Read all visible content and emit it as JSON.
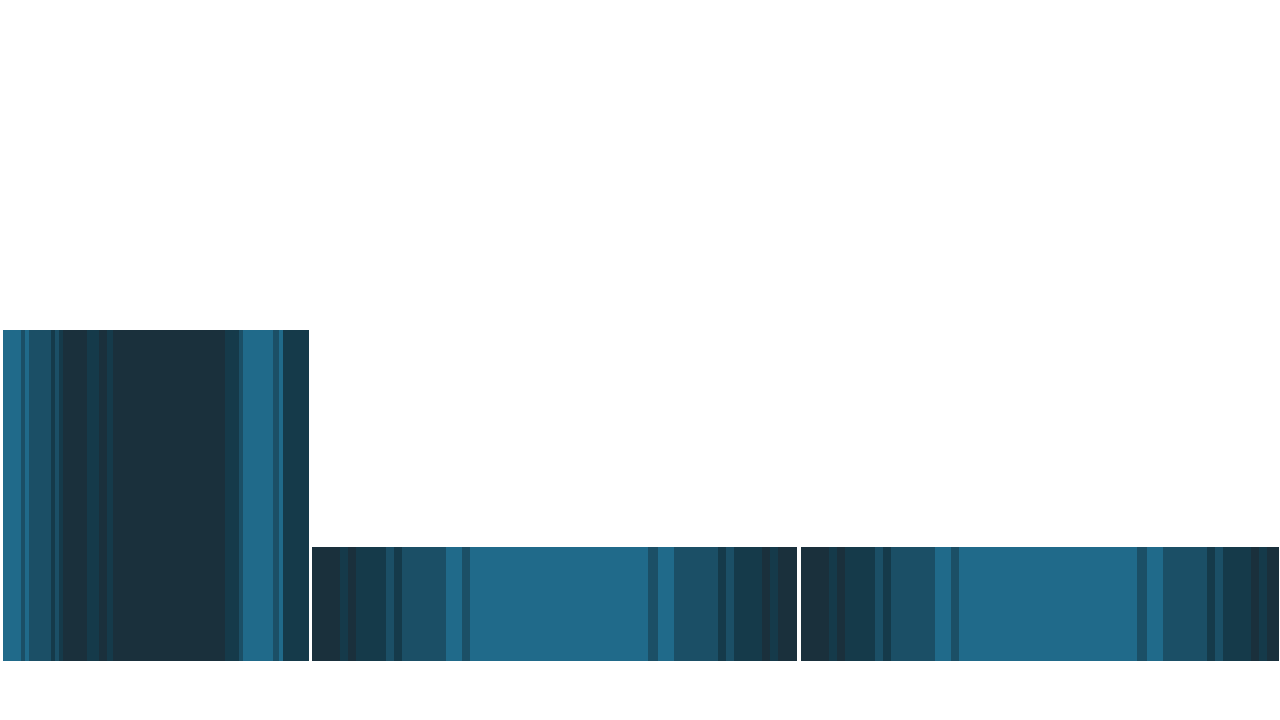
{
  "palette": {
    "darkest": "#1a303c",
    "dark": "#153a4a",
    "mid": "#1b4f66",
    "bright": "#206a8a",
    "background": "#ffffff"
  },
  "panels": [
    {
      "id": "panel-left",
      "name": "stripe-panel-left",
      "stripes": [
        "bright",
        "mid",
        "bright",
        "mid",
        "dark",
        "mid",
        "dark",
        "darkest",
        "dark",
        "darkest",
        "dark",
        "darkest",
        "dark",
        "mid",
        "bright",
        "mid",
        "bright",
        "dark"
      ]
    },
    {
      "id": "panel-middle",
      "name": "stripe-panel-middle",
      "stripes": [
        "darkest",
        "dark",
        "darkest",
        "dark",
        "mid",
        "dark",
        "mid",
        "bright",
        "mid",
        "bright",
        "mid",
        "bright",
        "mid",
        "dark",
        "mid",
        "dark",
        "darkest",
        "dark",
        "darkest"
      ]
    },
    {
      "id": "panel-right",
      "name": "stripe-panel-right",
      "stripes": [
        "darkest",
        "dark",
        "darkest",
        "dark",
        "mid",
        "dark",
        "mid",
        "bright",
        "mid",
        "bright",
        "mid",
        "bright",
        "mid",
        "dark",
        "mid",
        "dark",
        "darkest",
        "dark",
        "darkest"
      ]
    }
  ]
}
